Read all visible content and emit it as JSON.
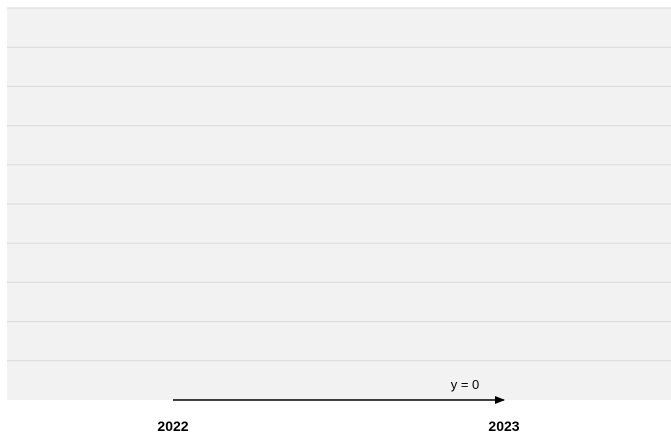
{
  "chart_data": {
    "type": "line",
    "title": "",
    "xlabel": "",
    "ylabel": "",
    "x": [
      "2022",
      "2023"
    ],
    "series": [
      {
        "values": [
          0,
          0
        ]
      }
    ],
    "ylim": [
      0,
      10
    ],
    "grid": true,
    "legend": "none",
    "annotations": [
      {
        "text": "y = 0"
      }
    ],
    "colors": {
      "plot_background": "#f2f2f2",
      "grid": "#d9d9d9",
      "line": "#000000",
      "text": "#000000"
    }
  }
}
